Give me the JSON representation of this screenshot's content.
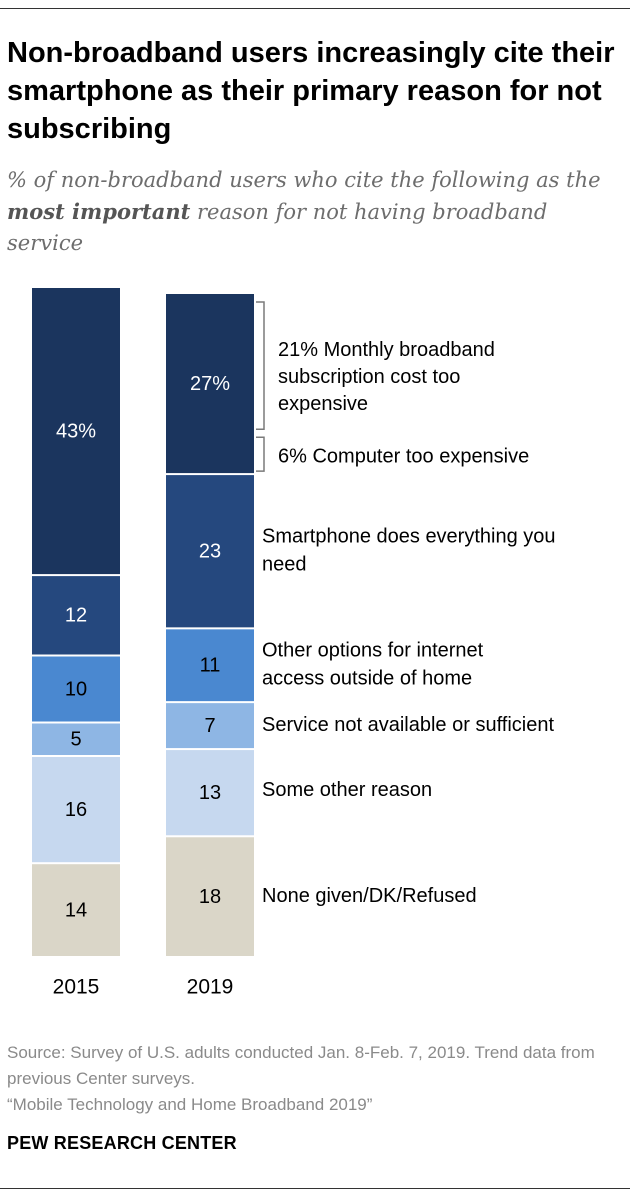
{
  "title": "Non-broadband users increasingly cite their smartphone as their primary reason for not subscribing",
  "subtitle": {
    "prefix": "% of non-broadband users who cite the following as the ",
    "emphasis": "most important",
    "suffix": " reason for not having broadband service"
  },
  "chart_data": {
    "type": "bar",
    "stacked": true,
    "orientation": "vertical",
    "categories": [
      "2015",
      "2019"
    ],
    "series": [
      {
        "name": "Cost too expensive",
        "values": [
          43,
          27
        ],
        "labels": [
          "43%",
          "27%"
        ],
        "color": "#1b355e",
        "text_color": "#ffffff"
      },
      {
        "name": "Smartphone does everything you need",
        "values": [
          12,
          23
        ],
        "labels": [
          "12",
          "23"
        ],
        "color": "#25487e",
        "text_color": "#ffffff"
      },
      {
        "name": "Other options for internet access outside of home",
        "values": [
          10,
          11
        ],
        "labels": [
          "10",
          "11"
        ],
        "color": "#4a88d0",
        "text_color": "#000000"
      },
      {
        "name": "Service not available or sufficient",
        "values": [
          5,
          7
        ],
        "labels": [
          "5",
          "7"
        ],
        "color": "#8eb6e4",
        "text_color": "#000000"
      },
      {
        "name": "Some other reason",
        "values": [
          16,
          13
        ],
        "labels": [
          "16",
          "13"
        ],
        "color": "#c6d8ef",
        "text_color": "#000000"
      },
      {
        "name": "None given/DK/Refused",
        "values": [
          14,
          18
        ],
        "labels": [
          "14",
          "18"
        ],
        "color": "#dad6c8",
        "text_color": "#000000"
      }
    ],
    "cost_breakdown_2019": [
      {
        "value": 21,
        "label": "21% Monthly broadband subscription cost too expensive"
      },
      {
        "value": 6,
        "label": "6% Computer too expensive"
      }
    ],
    "legend_labels": [
      "Smartphone does everything you need",
      "Other options for internet access outside of home",
      "Service not available or sufficient",
      "Some other reason",
      "None given/DK/Refused"
    ]
  },
  "source": {
    "line1": "Source: Survey of U.S. adults conducted Jan. 8-Feb. 7, 2019. Trend data from previous Center surveys.",
    "line2": "“Mobile Technology and Home Broadband 2019”"
  },
  "brand": "PEW RESEARCH CENTER"
}
